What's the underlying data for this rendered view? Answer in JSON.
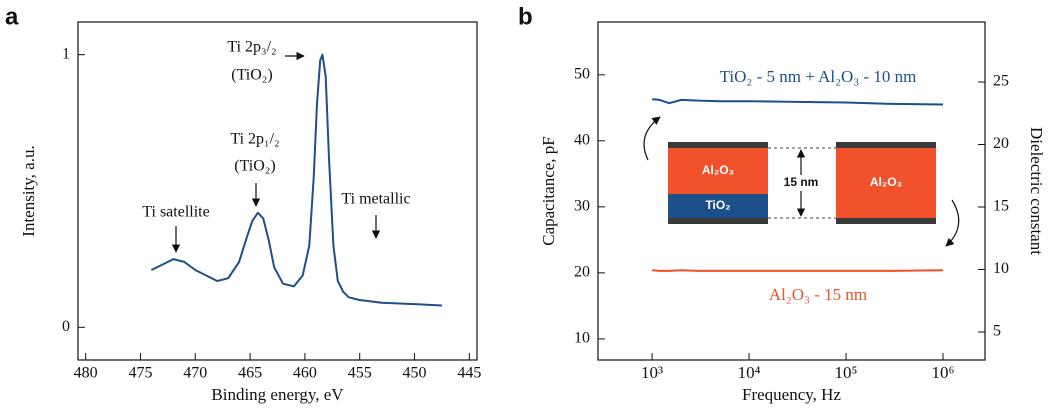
{
  "chart_data": [
    {
      "type": "line",
      "panel_label": "a",
      "x_label": "Binding energy, eV",
      "y_label": "Intensity, a.u.",
      "x": [
        474,
        473,
        472,
        471,
        470,
        469,
        468,
        467,
        466,
        465.3,
        464.8,
        464.3,
        463.8,
        463.3,
        462.8,
        462,
        461,
        460.2,
        459.6,
        459.2,
        458.9,
        458.6,
        458.4,
        458.1,
        457.8,
        457.4,
        457,
        456.5,
        456,
        455,
        453,
        450,
        447.5
      ],
      "values": [
        0.21,
        0.23,
        0.25,
        0.24,
        0.21,
        0.19,
        0.17,
        0.18,
        0.24,
        0.33,
        0.39,
        0.42,
        0.4,
        0.32,
        0.22,
        0.16,
        0.15,
        0.19,
        0.3,
        0.55,
        0.82,
        0.98,
        1.0,
        0.92,
        0.62,
        0.3,
        0.17,
        0.13,
        0.11,
        0.1,
        0.09,
        0.085,
        0.08
      ],
      "color": "#1d4f8a",
      "xlim": [
        480.7,
        444.3
      ],
      "xticks": [
        480,
        475,
        470,
        465,
        460,
        455,
        450,
        445
      ],
      "ylim": [
        -0.12,
        1.12
      ],
      "yticks": [
        0,
        1
      ],
      "annotations": [
        "Ti 2p₃/₂",
        "(TiO₂)",
        "Ti 2p₁/₂",
        "(TiO₂)",
        "Ti satellite",
        "Ti metallic"
      ]
    },
    {
      "type": "line",
      "panel_label": "b",
      "x_label": "Frequency, Hz",
      "y_label": "Capacitance, pF",
      "y2_label": "Dielectric constant",
      "x": [
        1000,
        1200,
        1500,
        2000,
        3000,
        5000,
        10000,
        30000,
        100000,
        300000,
        1000000
      ],
      "series": [
        {
          "name": "TiO₂ - 5 nm + Al₂O₃ - 10 nm",
          "color": "#1d4f8a",
          "values": [
            46.3,
            46.2,
            45.7,
            46.2,
            46.1,
            46.0,
            46.0,
            45.9,
            45.8,
            45.6,
            45.5
          ]
        },
        {
          "name": "Al₂O₃ - 15 nm",
          "color": "#f0502a",
          "values": [
            20.4,
            20.3,
            20.3,
            20.4,
            20.3,
            20.3,
            20.3,
            20.3,
            20.3,
            20.3,
            20.4
          ]
        }
      ],
      "xlog": true,
      "xlim": [
        277,
        2710000
      ],
      "xticks": [
        {
          "value": 1000,
          "label": "10³"
        },
        {
          "value": 10000,
          "label": "10⁴"
        },
        {
          "value": 100000,
          "label": "10⁵"
        },
        {
          "value": 1000000,
          "label": "10⁶"
        }
      ],
      "ylim": [
        6.8,
        58
      ],
      "yticks": [
        10,
        20,
        30,
        40,
        50
      ],
      "y2lim": [
        2.76,
        29.8
      ],
      "y2ticks": [
        5,
        10,
        15,
        20,
        25
      ],
      "inset": {
        "left_top": "Al₂O₃",
        "left_bottom": "TiO₂",
        "gap": "15 nm",
        "right": "Al₂O₃"
      }
    }
  ]
}
